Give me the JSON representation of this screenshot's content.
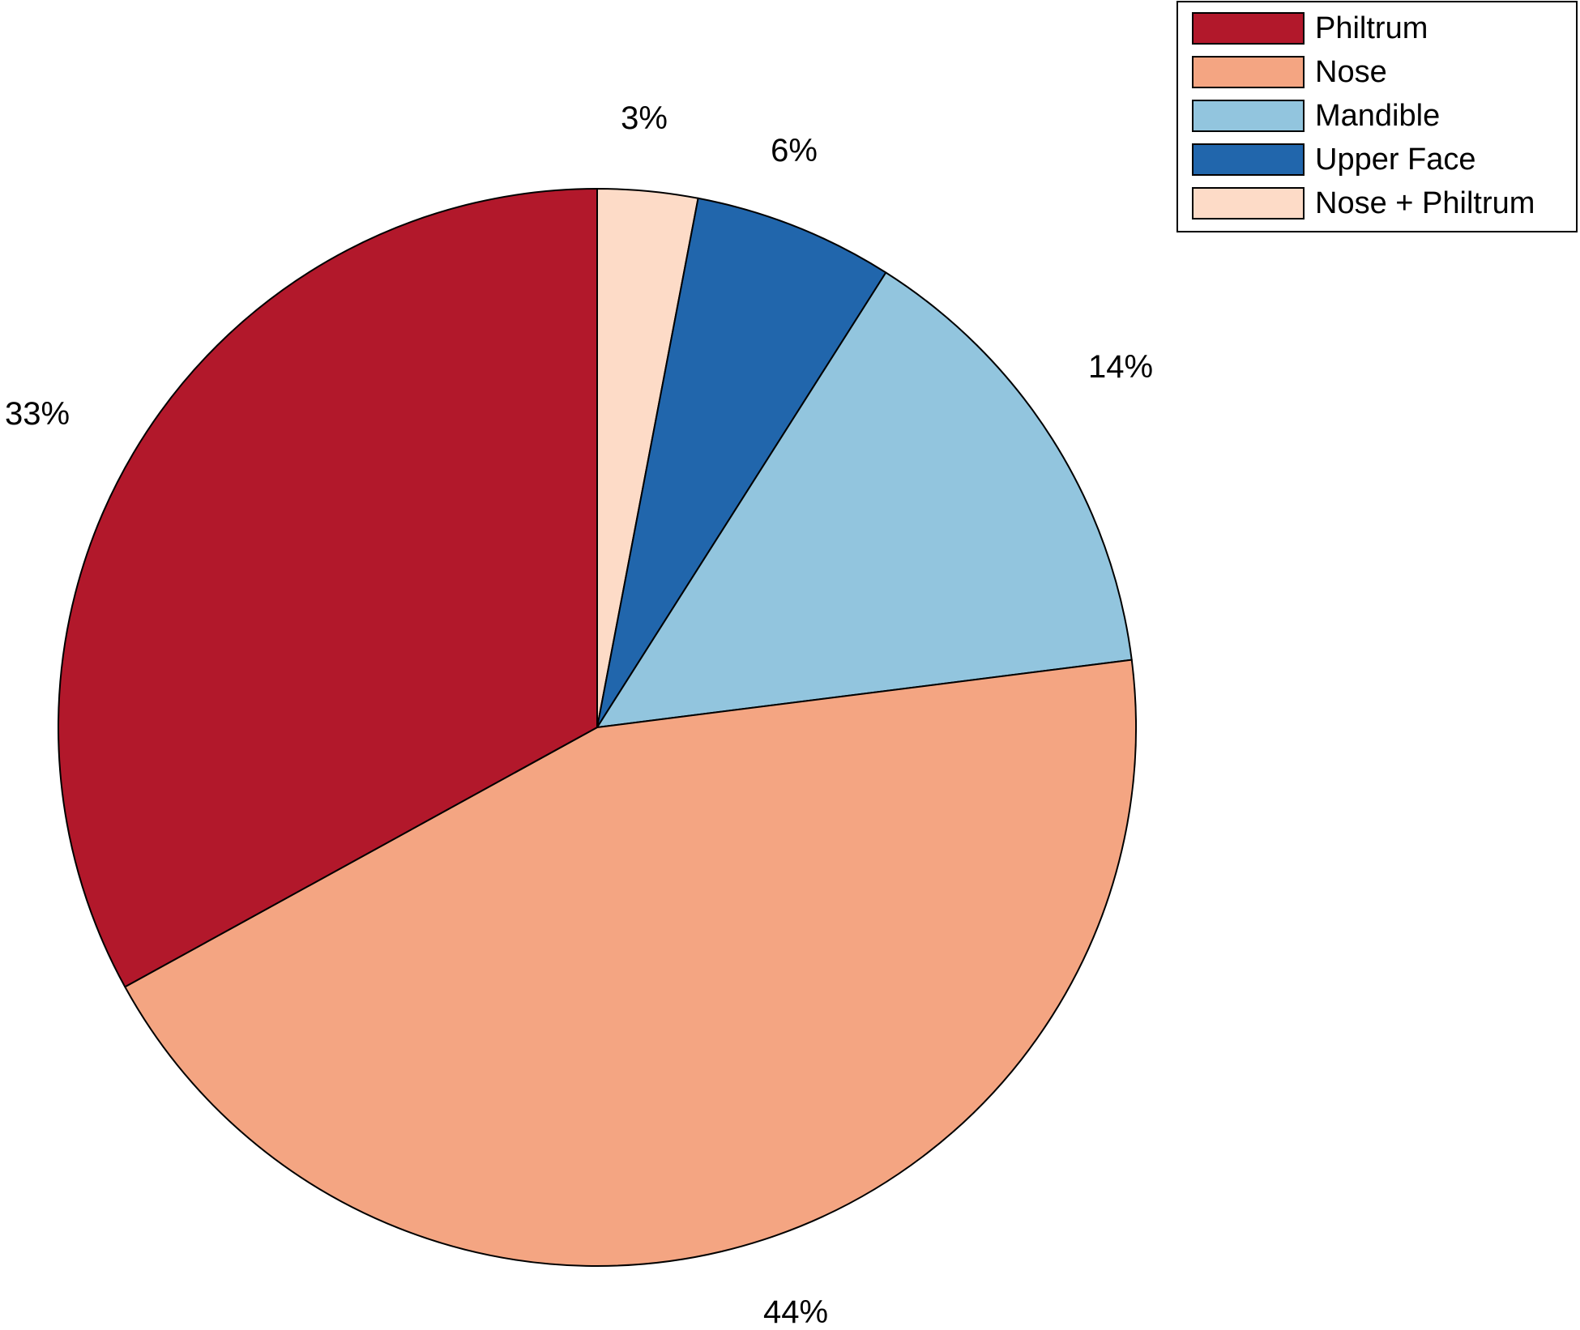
{
  "chart_data": {
    "type": "pie",
    "start_angle": "12 o'clock",
    "direction": "clockwise",
    "slices": [
      {
        "name": "Nose + Philtrum",
        "value": 3,
        "label": "3%",
        "color": "#FDDBC7"
      },
      {
        "name": "Upper Face",
        "value": 6,
        "label": "6%",
        "color": "#2166AC"
      },
      {
        "name": "Mandible",
        "value": 14,
        "label": "14%",
        "color": "#92C5DE"
      },
      {
        "name": "Nose",
        "value": 44,
        "label": "44%",
        "color": "#F4A582"
      },
      {
        "name": "Philtrum",
        "value": 33,
        "label": "33%",
        "color": "#B2182B"
      }
    ],
    "legend": {
      "placement": "top-right",
      "entries": [
        {
          "label": "Philtrum",
          "color": "#B2182B"
        },
        {
          "label": "Nose",
          "color": "#F4A582"
        },
        {
          "label": "Mandible",
          "color": "#92C5DE"
        },
        {
          "label": "Upper Face",
          "color": "#2166AC"
        },
        {
          "label": "Nose + Philtrum",
          "color": "#FDDBC7"
        }
      ]
    }
  }
}
